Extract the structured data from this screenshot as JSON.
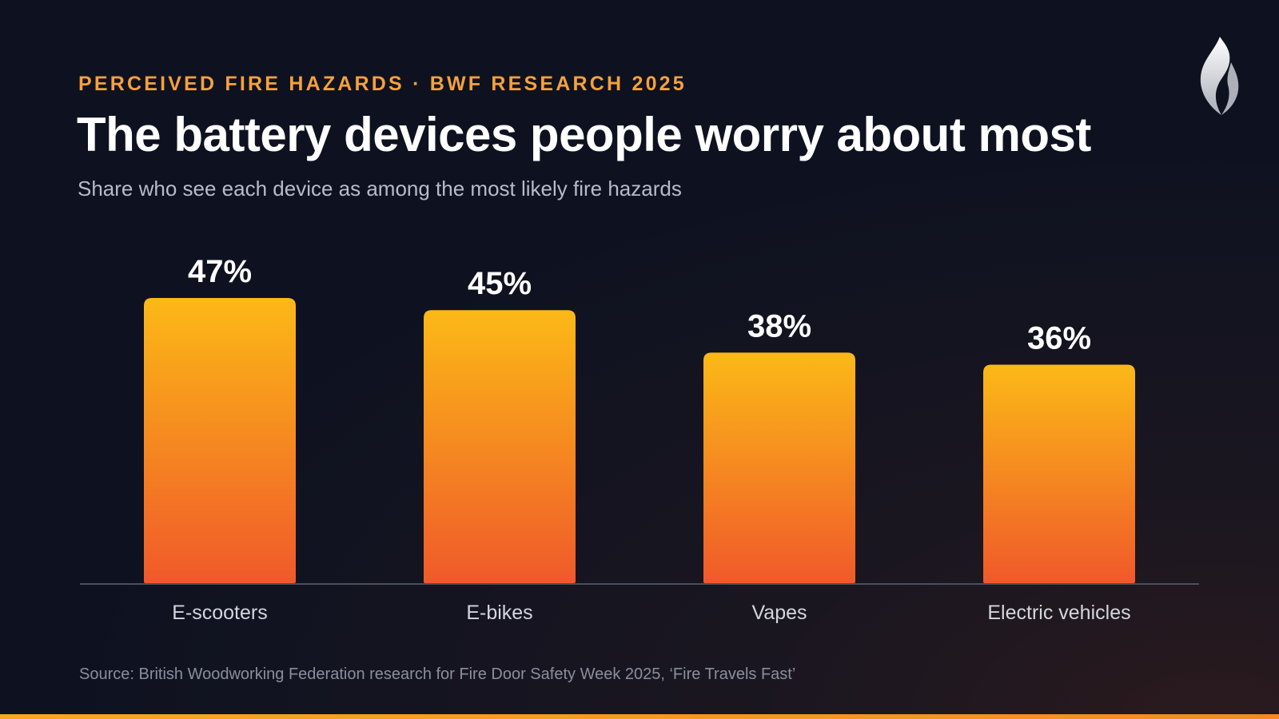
{
  "header": {
    "kicker": "PERCEIVED FIRE HAZARDS · BWF RESEARCH 2025",
    "title": "The battery devices people worry about most",
    "subtitle": "Share who see each device as among the most likely fire hazards"
  },
  "logo": {
    "icon": "flame-icon"
  },
  "source": "Source: British Woodworking Federation research for Fire Door Safety Week 2025, ‘Fire Travels Fast’",
  "colors": {
    "background": "#0e1322",
    "accent": "#f6a13a",
    "bar_top": "#fbb917",
    "bar_bottom": "#f0592a",
    "bottom_bar": "#f7a81f"
  },
  "chart_data": {
    "type": "bar",
    "categories": [
      "E-scooters",
      "E-bikes",
      "Vapes",
      "Electric vehicles"
    ],
    "values": [
      47,
      45,
      38,
      36
    ],
    "value_labels": [
      "47%",
      "45%",
      "38%",
      "36%"
    ],
    "unit": "%",
    "title": "The battery devices people worry about most",
    "subtitle": "Share who see each device as among the most likely fire hazards",
    "xlabel": "",
    "ylabel": "",
    "ylim": [
      0,
      47
    ],
    "grid": false,
    "legend": "none"
  }
}
